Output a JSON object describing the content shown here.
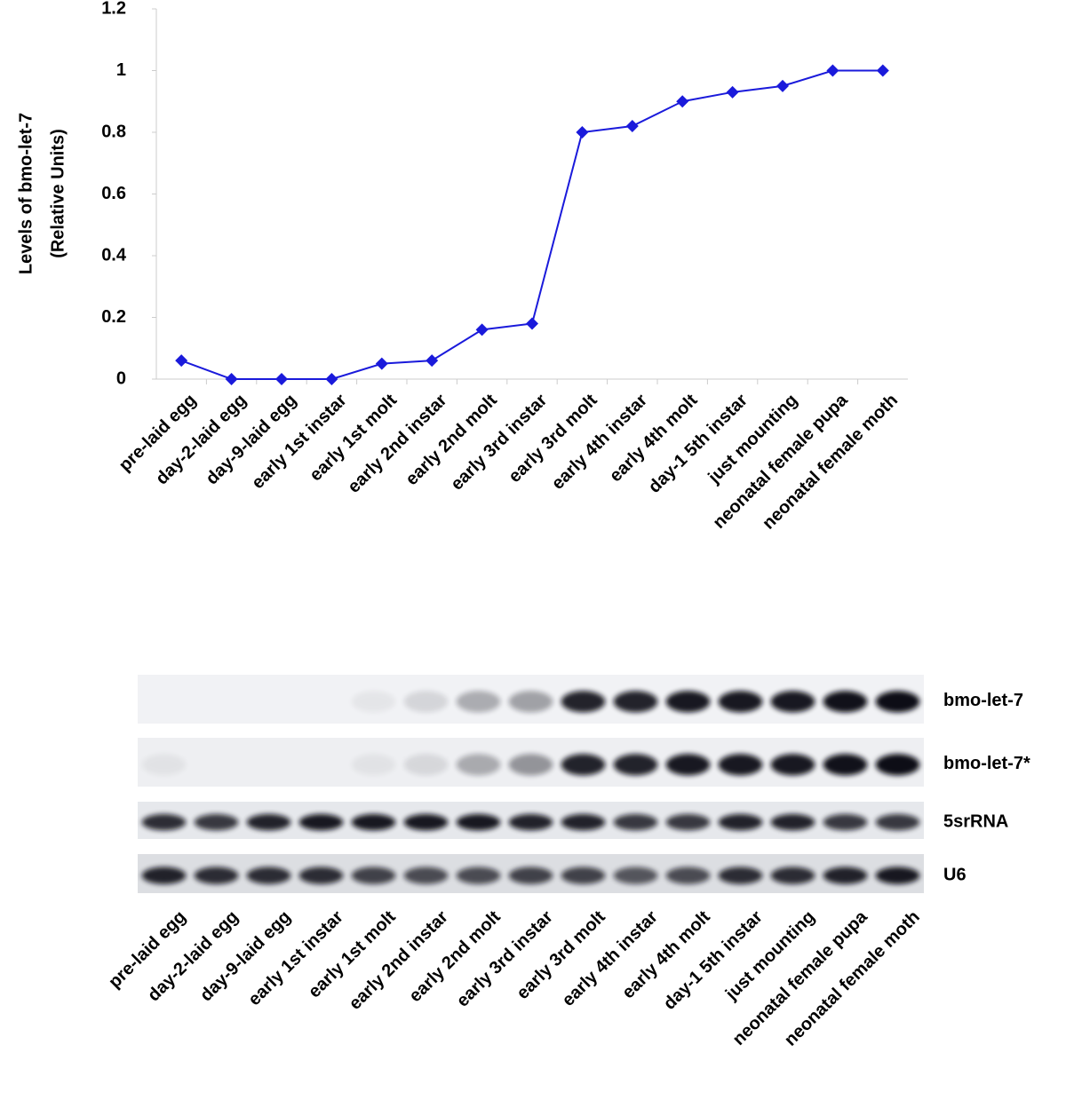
{
  "chart_data": {
    "type": "line",
    "ylabel": [
      "Levels of bmo-let-7",
      "(Relative Units)"
    ],
    "categories": [
      "pre-laid egg",
      "day-2-laid egg",
      "day-9-laid egg",
      "early 1st instar",
      "early 1st molt",
      "early 2nd instar",
      "early 2nd molt",
      "early 3rd instar",
      "early 3rd molt",
      "early 4th instar",
      "early 4th molt",
      "day-1 5th instar",
      "just mounting",
      "neonatal female pupa",
      "neonatal female moth"
    ],
    "values": [
      0.06,
      0,
      0,
      0,
      0.05,
      0.06,
      0.16,
      0.18,
      0.8,
      0.82,
      0.9,
      0.93,
      0.95,
      1,
      1
    ],
    "color": "#1a1adb",
    "ylim": [
      0,
      1.2
    ],
    "yticks": [
      0,
      0.2,
      0.4,
      0.6,
      0.8,
      1,
      1.2
    ],
    "grid": false
  },
  "blot": {
    "rows": [
      "bmo-let-7",
      "bmo-let-7*",
      "5srRNA",
      "U6"
    ],
    "lanes": [
      "pre-laid egg",
      "day-2-laid egg",
      "day-9-laid egg",
      "early 1st instar",
      "early 1st molt",
      "early 2nd instar",
      "early 2nd molt",
      "early 3rd instar",
      "early 3rd molt",
      "early 4th instar",
      "early 4th molt",
      "day-1 5th instar",
      "just mounting",
      "neonatal female pupa",
      "neonatal female moth"
    ]
  }
}
